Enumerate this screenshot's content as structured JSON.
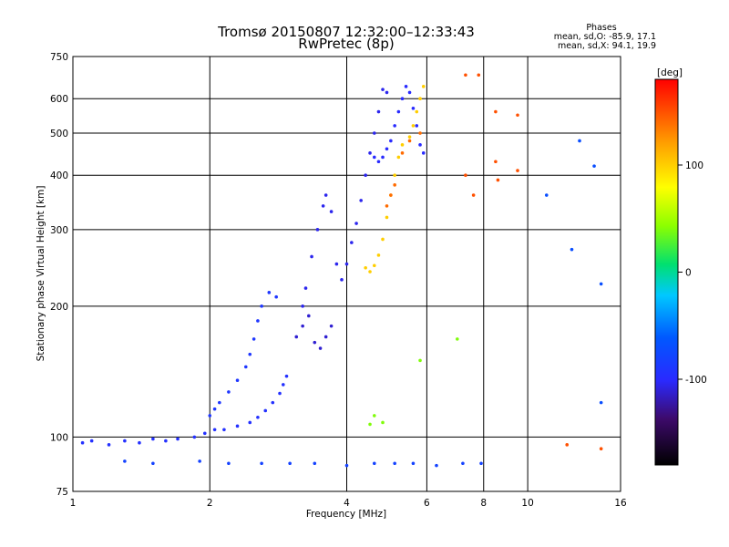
{
  "header": {
    "title_line1": "Tromsø 20150807 12:32:00–12:33:43",
    "title_line2": "RwPretec (8p)",
    "phases_title": "Phases",
    "phases_o": "mean, sd,O: -85.9, 17.1",
    "phases_x": "mean, sd,X:  94.1, 19.9"
  },
  "colorbar": {
    "label": "[deg]",
    "ticks": [
      "100",
      "0",
      "-100"
    ],
    "range": [
      -180,
      180
    ]
  },
  "chart_data": {
    "type": "scatter",
    "xlabel": "Frequency [MHz]",
    "ylabel": "Stationary phase Virtual Height [km]",
    "x_scale": "log",
    "y_scale": "log",
    "xlim": [
      1,
      16
    ],
    "ylim": [
      75,
      750
    ],
    "x_ticks": [
      "1",
      "2",
      "4",
      "6",
      "8",
      "10",
      "16"
    ],
    "y_ticks": [
      "75",
      "100",
      "200",
      "300",
      "400",
      "500",
      "600",
      "750"
    ],
    "grid": true,
    "series": [
      {
        "color_deg": -95,
        "points": [
          [
            1.05,
            97
          ],
          [
            1.1,
            98
          ],
          [
            1.2,
            96
          ],
          [
            1.3,
            98
          ],
          [
            1.4,
            97
          ],
          [
            1.5,
            99
          ],
          [
            1.6,
            98
          ],
          [
            1.7,
            99
          ],
          [
            1.85,
            100
          ],
          [
            1.95,
            102
          ],
          [
            2.05,
            104
          ],
          [
            2.15,
            104
          ],
          [
            2.3,
            106
          ],
          [
            2.45,
            108
          ],
          [
            2.55,
            111
          ],
          [
            2.65,
            115
          ],
          [
            2.75,
            120
          ],
          [
            2.85,
            126
          ],
          [
            2.9,
            132
          ],
          [
            2.95,
            138
          ]
        ]
      },
      {
        "color_deg": -90,
        "points": [
          [
            2.0,
            112
          ],
          [
            2.05,
            116
          ],
          [
            2.1,
            120
          ],
          [
            2.2,
            127
          ],
          [
            2.3,
            135
          ],
          [
            2.4,
            145
          ],
          [
            2.45,
            155
          ],
          [
            2.5,
            168
          ],
          [
            2.55,
            185
          ],
          [
            2.6,
            200
          ],
          [
            2.7,
            215
          ],
          [
            2.8,
            210
          ]
        ]
      },
      {
        "color_deg": -105,
        "points": [
          [
            3.2,
            200
          ],
          [
            3.25,
            220
          ],
          [
            3.35,
            260
          ],
          [
            3.45,
            300
          ],
          [
            3.55,
            340
          ],
          [
            3.6,
            360
          ],
          [
            3.7,
            330
          ],
          [
            3.8,
            250
          ],
          [
            3.9,
            230
          ],
          [
            4.0,
            250
          ],
          [
            4.1,
            280
          ],
          [
            4.2,
            310
          ],
          [
            4.3,
            350
          ],
          [
            4.4,
            400
          ],
          [
            4.5,
            450
          ],
          [
            4.6,
            500
          ],
          [
            4.7,
            560
          ],
          [
            4.8,
            630
          ],
          [
            4.9,
            620
          ]
        ]
      },
      {
        "color_deg": -112,
        "points": [
          [
            3.1,
            170
          ],
          [
            3.2,
            180
          ],
          [
            3.3,
            190
          ],
          [
            3.4,
            165
          ],
          [
            3.5,
            160
          ],
          [
            3.6,
            170
          ],
          [
            3.7,
            180
          ]
        ]
      },
      {
        "color_deg": -100,
        "points": [
          [
            4.6,
            440
          ],
          [
            4.7,
            430
          ],
          [
            4.8,
            440
          ],
          [
            4.9,
            460
          ],
          [
            5.0,
            480
          ],
          [
            5.1,
            520
          ],
          [
            5.2,
            560
          ],
          [
            5.3,
            600
          ],
          [
            5.4,
            640
          ],
          [
            5.5,
            620
          ],
          [
            5.6,
            570
          ],
          [
            5.7,
            520
          ],
          [
            5.8,
            470
          ],
          [
            5.9,
            450
          ]
        ]
      },
      {
        "color_deg": 100,
        "points": [
          [
            4.4,
            245
          ],
          [
            4.5,
            240
          ],
          [
            4.6,
            248
          ],
          [
            4.7,
            262
          ],
          [
            4.8,
            285
          ],
          [
            4.9,
            320
          ],
          [
            5.0,
            360
          ],
          [
            5.1,
            400
          ],
          [
            5.2,
            440
          ],
          [
            5.3,
            470
          ],
          [
            5.5,
            490
          ],
          [
            5.6,
            520
          ],
          [
            5.7,
            560
          ],
          [
            5.8,
            600
          ],
          [
            5.9,
            640
          ]
        ]
      },
      {
        "color_deg": 140,
        "points": [
          [
            4.9,
            340
          ],
          [
            5.0,
            360
          ],
          [
            5.1,
            380
          ],
          [
            5.3,
            450
          ],
          [
            5.5,
            480
          ],
          [
            5.8,
            500
          ]
        ]
      },
      {
        "color_deg": -80,
        "points": [
          [
            1.3,
            88
          ],
          [
            1.5,
            87
          ],
          [
            1.9,
            88
          ],
          [
            2.2,
            87
          ],
          [
            2.6,
            87
          ],
          [
            3.0,
            87
          ],
          [
            3.4,
            87
          ],
          [
            4.0,
            86
          ],
          [
            4.6,
            87
          ],
          [
            5.1,
            87
          ],
          [
            5.6,
            87
          ],
          [
            6.3,
            86
          ],
          [
            7.2,
            87
          ],
          [
            7.9,
            87
          ]
        ]
      },
      {
        "color_deg": 150,
        "points": [
          [
            7.3,
            680
          ],
          [
            7.8,
            680
          ],
          [
            8.5,
            560
          ],
          [
            9.5,
            550
          ],
          [
            8.5,
            430
          ],
          [
            9.5,
            410
          ],
          [
            7.3,
            400
          ],
          [
            7.6,
            360
          ],
          [
            8.6,
            390
          ],
          [
            12.2,
            96
          ],
          [
            14.5,
            94
          ]
        ]
      },
      {
        "color_deg": -70,
        "points": [
          [
            11.0,
            360
          ],
          [
            13.0,
            480
          ],
          [
            14.0,
            420
          ],
          [
            14.5,
            225
          ],
          [
            14.5,
            120
          ],
          [
            12.5,
            270
          ]
        ]
      },
      {
        "color_deg": 40,
        "points": [
          [
            4.5,
            107
          ],
          [
            4.8,
            108
          ],
          [
            4.6,
            112
          ],
          [
            7.0,
            168
          ],
          [
            5.8,
            150
          ]
        ]
      }
    ]
  }
}
